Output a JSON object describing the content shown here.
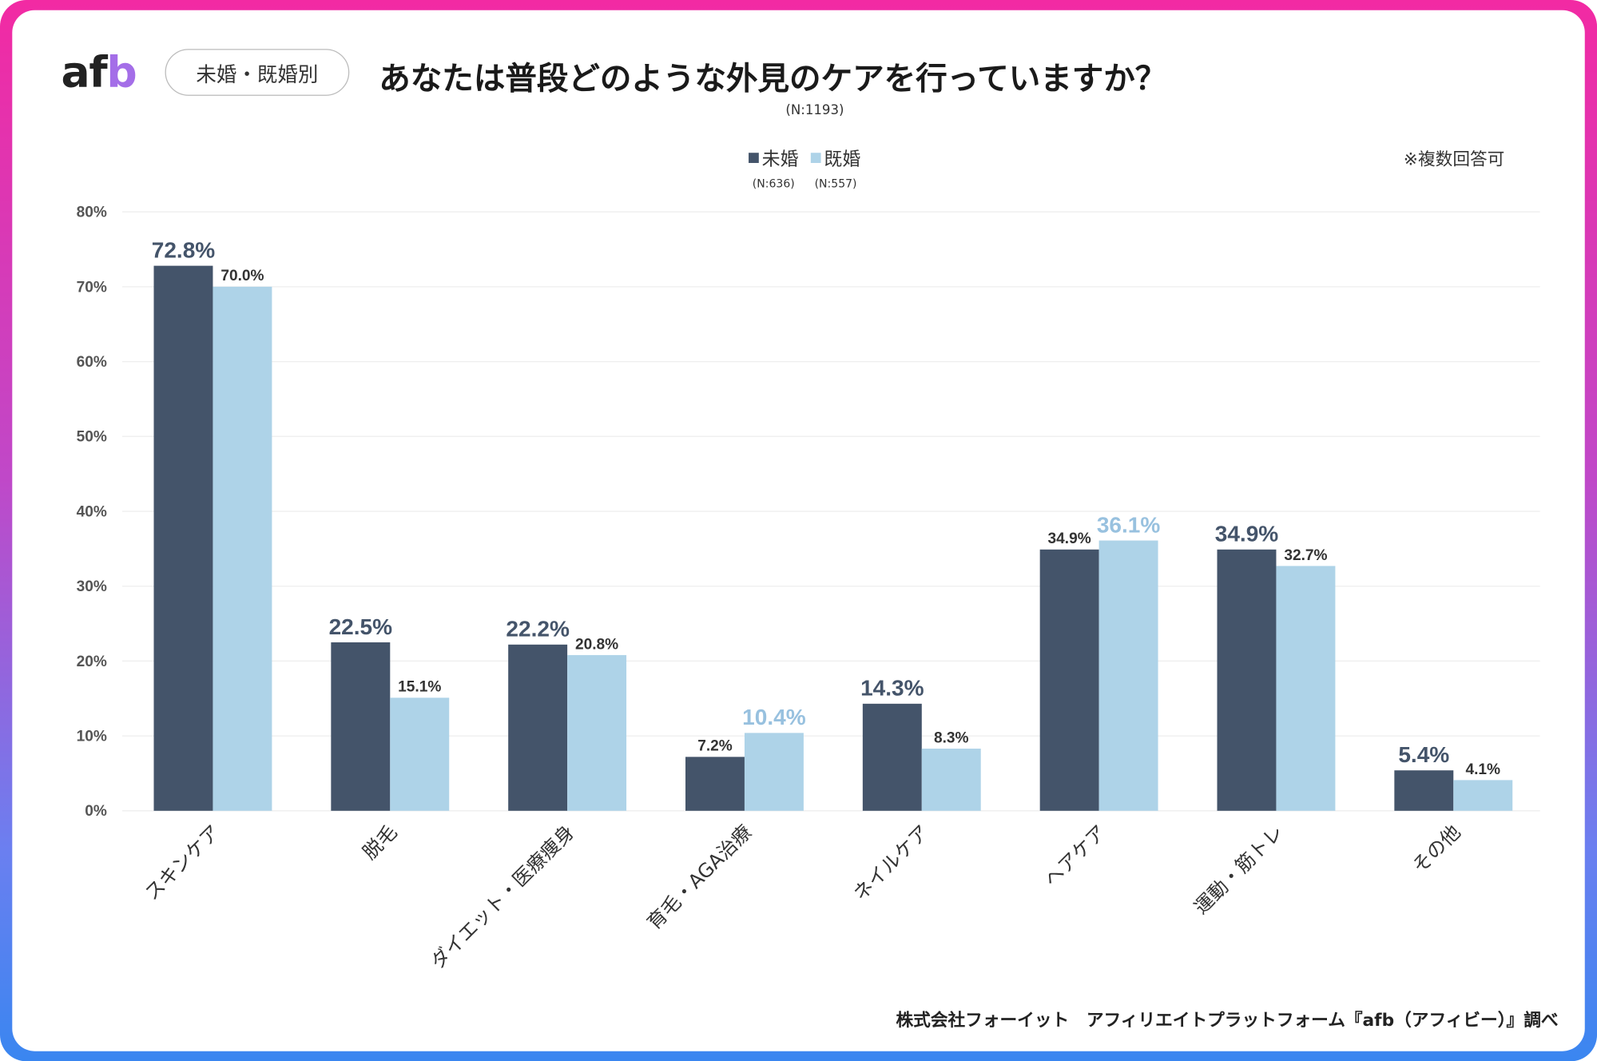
{
  "header": {
    "logo": "afb",
    "badge": "未婚・既婚別",
    "title": "あなたは普段どのような外見のケアを行っていますか？",
    "sample_size": "(N:1193)",
    "note": "※複数回答可"
  },
  "footer": {
    "source": "株式会社フォーイット　アフィリエイトプラットフォーム『afb（アフィビー）』調べ"
  },
  "colors": {
    "unmarried": "#44546a",
    "married": "#aed3e8",
    "married_highlight": "#98c1df",
    "frame_top": "#f22aa3",
    "frame_bottom": "#3a86f0"
  },
  "chart_data": {
    "type": "bar",
    "title": "あなたは普段どのような外見のケアを行っていますか？",
    "categories": [
      "スキンケア",
      "脱毛",
      "ダイエット・医療痩身",
      "育毛・AGA治療",
      "ネイルケア",
      "ヘアケア",
      "運動・筋トレ",
      "その他"
    ],
    "series": [
      {
        "name": "未婚",
        "n_label": "(N:636)",
        "values": [
          72.8,
          22.5,
          22.2,
          7.2,
          14.3,
          34.9,
          34.9,
          5.4
        ]
      },
      {
        "name": "既婚",
        "n_label": "(N:557)",
        "values": [
          70.0,
          15.1,
          20.8,
          10.4,
          8.3,
          36.1,
          32.7,
          4.1
        ]
      }
    ],
    "ylim": [
      0,
      80
    ],
    "yticks": [
      "0%",
      "10%",
      "20%",
      "30%",
      "40%",
      "50%",
      "60%",
      "70%",
      "80%"
    ],
    "grid": true,
    "legend": "top-center",
    "value_format": "%"
  }
}
